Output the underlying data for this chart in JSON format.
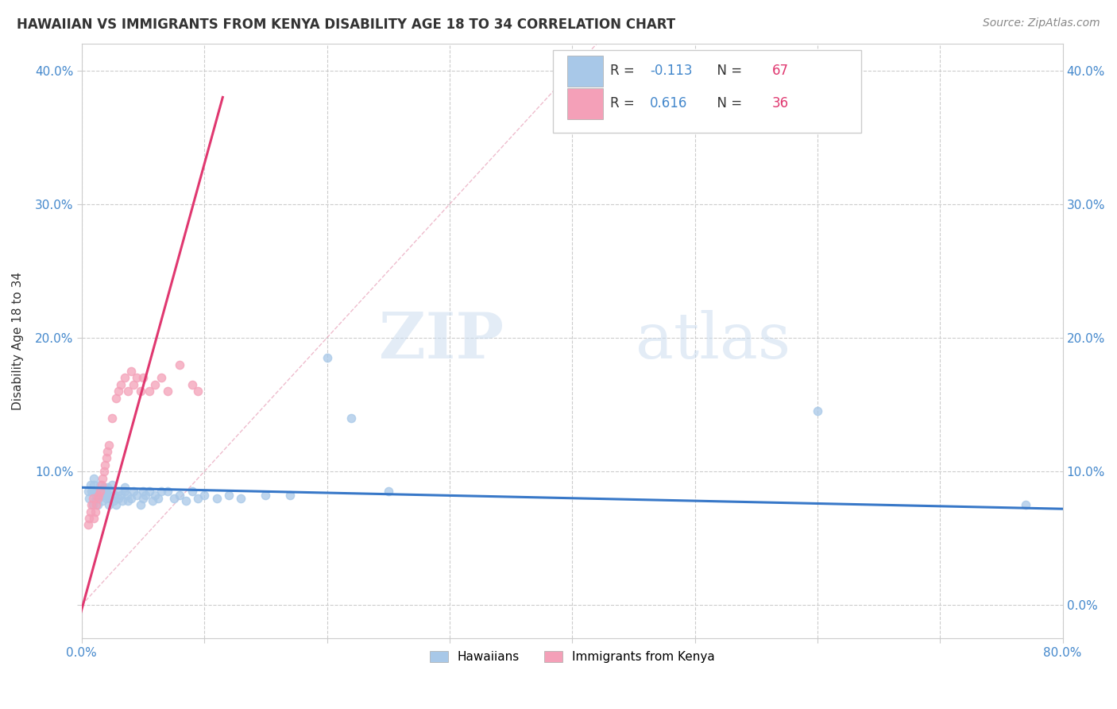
{
  "title": "HAWAIIAN VS IMMIGRANTS FROM KENYA DISABILITY AGE 18 TO 34 CORRELATION CHART",
  "source": "Source: ZipAtlas.com",
  "ylabel": "Disability Age 18 to 34",
  "xmin": 0.0,
  "xmax": 0.8,
  "ymin": -0.025,
  "ymax": 0.42,
  "xticks": [
    0.0,
    0.1,
    0.2,
    0.3,
    0.4,
    0.5,
    0.6,
    0.7,
    0.8
  ],
  "yticks": [
    0.0,
    0.1,
    0.2,
    0.3,
    0.4
  ],
  "legend_r_hawaiian": "-0.113",
  "legend_n_hawaiian": "67",
  "legend_r_kenya": "0.616",
  "legend_n_kenya": "36",
  "hawaiian_color": "#a8c8e8",
  "kenya_color": "#f4a0b8",
  "hawaiian_line_color": "#3878c8",
  "kenya_line_color": "#e03870",
  "diag_line_color": "#e8a0b8",
  "watermark_zip": "ZIP",
  "watermark_atlas": "atlas",
  "hawaiian_x": [
    0.005,
    0.006,
    0.007,
    0.008,
    0.009,
    0.01,
    0.01,
    0.01,
    0.012,
    0.012,
    0.013,
    0.014,
    0.015,
    0.015,
    0.016,
    0.017,
    0.018,
    0.018,
    0.019,
    0.02,
    0.02,
    0.021,
    0.022,
    0.022,
    0.023,
    0.025,
    0.025,
    0.026,
    0.027,
    0.028,
    0.03,
    0.03,
    0.032,
    0.033,
    0.035,
    0.035,
    0.037,
    0.038,
    0.04,
    0.042,
    0.045,
    0.048,
    0.05,
    0.05,
    0.052,
    0.055,
    0.058,
    0.06,
    0.062,
    0.065,
    0.07,
    0.075,
    0.08,
    0.085,
    0.09,
    0.095,
    0.1,
    0.11,
    0.12,
    0.13,
    0.15,
    0.17,
    0.2,
    0.22,
    0.25,
    0.6,
    0.77
  ],
  "hawaiian_y": [
    0.085,
    0.08,
    0.09,
    0.085,
    0.075,
    0.085,
    0.09,
    0.095,
    0.085,
    0.08,
    0.075,
    0.08,
    0.085,
    0.09,
    0.082,
    0.078,
    0.085,
    0.088,
    0.082,
    0.085,
    0.08,
    0.088,
    0.082,
    0.075,
    0.08,
    0.09,
    0.085,
    0.078,
    0.082,
    0.075,
    0.08,
    0.085,
    0.082,
    0.078,
    0.085,
    0.088,
    0.082,
    0.078,
    0.08,
    0.085,
    0.082,
    0.075,
    0.08,
    0.085,
    0.082,
    0.085,
    0.078,
    0.082,
    0.08,
    0.085,
    0.085,
    0.08,
    0.082,
    0.078,
    0.085,
    0.08,
    0.082,
    0.08,
    0.082,
    0.08,
    0.082,
    0.082,
    0.185,
    0.14,
    0.085,
    0.145,
    0.075
  ],
  "kenya_x": [
    0.005,
    0.006,
    0.007,
    0.008,
    0.009,
    0.01,
    0.011,
    0.012,
    0.013,
    0.014,
    0.015,
    0.016,
    0.017,
    0.018,
    0.019,
    0.02,
    0.021,
    0.022,
    0.025,
    0.028,
    0.03,
    0.032,
    0.035,
    0.038,
    0.04,
    0.042,
    0.045,
    0.048,
    0.05,
    0.055,
    0.06,
    0.065,
    0.07,
    0.08,
    0.09,
    0.095
  ],
  "kenya_y": [
    0.06,
    0.065,
    0.07,
    0.075,
    0.08,
    0.065,
    0.07,
    0.075,
    0.08,
    0.082,
    0.085,
    0.09,
    0.095,
    0.1,
    0.105,
    0.11,
    0.115,
    0.12,
    0.14,
    0.155,
    0.16,
    0.165,
    0.17,
    0.16,
    0.175,
    0.165,
    0.17,
    0.16,
    0.17,
    0.16,
    0.165,
    0.17,
    0.16,
    0.18,
    0.165,
    0.16
  ]
}
